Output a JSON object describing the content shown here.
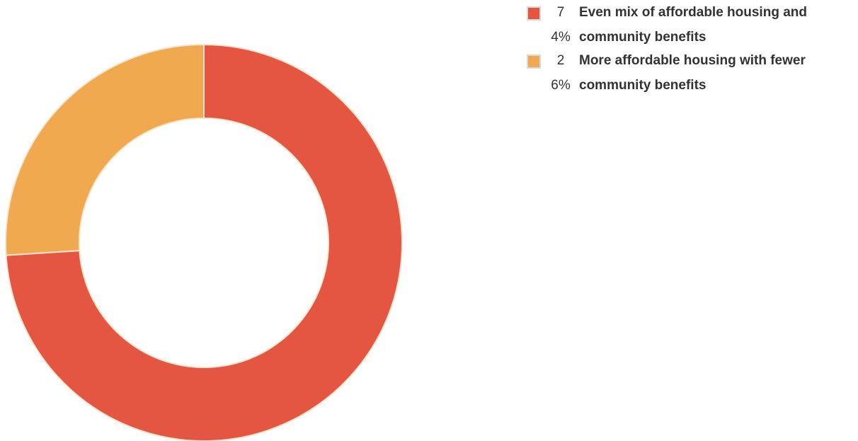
{
  "chart_data": {
    "type": "pie",
    "variant": "donut",
    "slices": [
      {
        "value": 74,
        "value_label": "74%",
        "label": "Even mix of affordable housing and community benefits",
        "color": "#E55642"
      },
      {
        "value": 26,
        "value_label": "26%",
        "label": "More affordable housing with fewer community benefits",
        "color": "#F0A94E"
      }
    ],
    "legend_position": "top-right",
    "title": "",
    "start_angle_deg": 0,
    "direction": "clockwise"
  }
}
